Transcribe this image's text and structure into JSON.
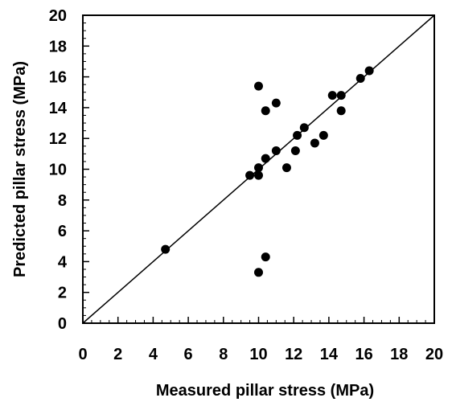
{
  "chart_data": {
    "type": "scatter",
    "title": "",
    "xlabel": "Measured pillar stress (MPa)",
    "ylabel": "Predicted pillar stress (MPa)",
    "xlim": [
      0,
      20
    ],
    "ylim": [
      0,
      20
    ],
    "x_ticks": [
      "0",
      "2",
      "4",
      "6",
      "8",
      "10",
      "12",
      "14",
      "16",
      "18",
      "20"
    ],
    "y_ticks": [
      "0",
      "2",
      "4",
      "6",
      "8",
      "10",
      "12",
      "14",
      "16",
      "18",
      "20"
    ],
    "grid": false,
    "reference_line": {
      "type": "1:1",
      "from": [
        0,
        0
      ],
      "to": [
        20,
        20
      ]
    },
    "marker_color": "#000000",
    "points": [
      {
        "x": 4.7,
        "y": 4.8
      },
      {
        "x": 9.5,
        "y": 9.6
      },
      {
        "x": 10.0,
        "y": 9.6
      },
      {
        "x": 10.0,
        "y": 10.1
      },
      {
        "x": 10.0,
        "y": 3.3
      },
      {
        "x": 10.0,
        "y": 15.4
      },
      {
        "x": 10.4,
        "y": 13.8
      },
      {
        "x": 10.4,
        "y": 10.7
      },
      {
        "x": 10.4,
        "y": 4.3
      },
      {
        "x": 11.0,
        "y": 11.2
      },
      {
        "x": 11.0,
        "y": 14.3
      },
      {
        "x": 11.6,
        "y": 10.1
      },
      {
        "x": 12.1,
        "y": 11.2
      },
      {
        "x": 12.2,
        "y": 12.2
      },
      {
        "x": 12.6,
        "y": 12.7
      },
      {
        "x": 13.2,
        "y": 11.7
      },
      {
        "x": 13.7,
        "y": 12.2
      },
      {
        "x": 14.2,
        "y": 14.8
      },
      {
        "x": 14.7,
        "y": 14.8
      },
      {
        "x": 14.7,
        "y": 13.8
      },
      {
        "x": 15.8,
        "y": 15.9
      },
      {
        "x": 16.3,
        "y": 16.4
      }
    ]
  }
}
